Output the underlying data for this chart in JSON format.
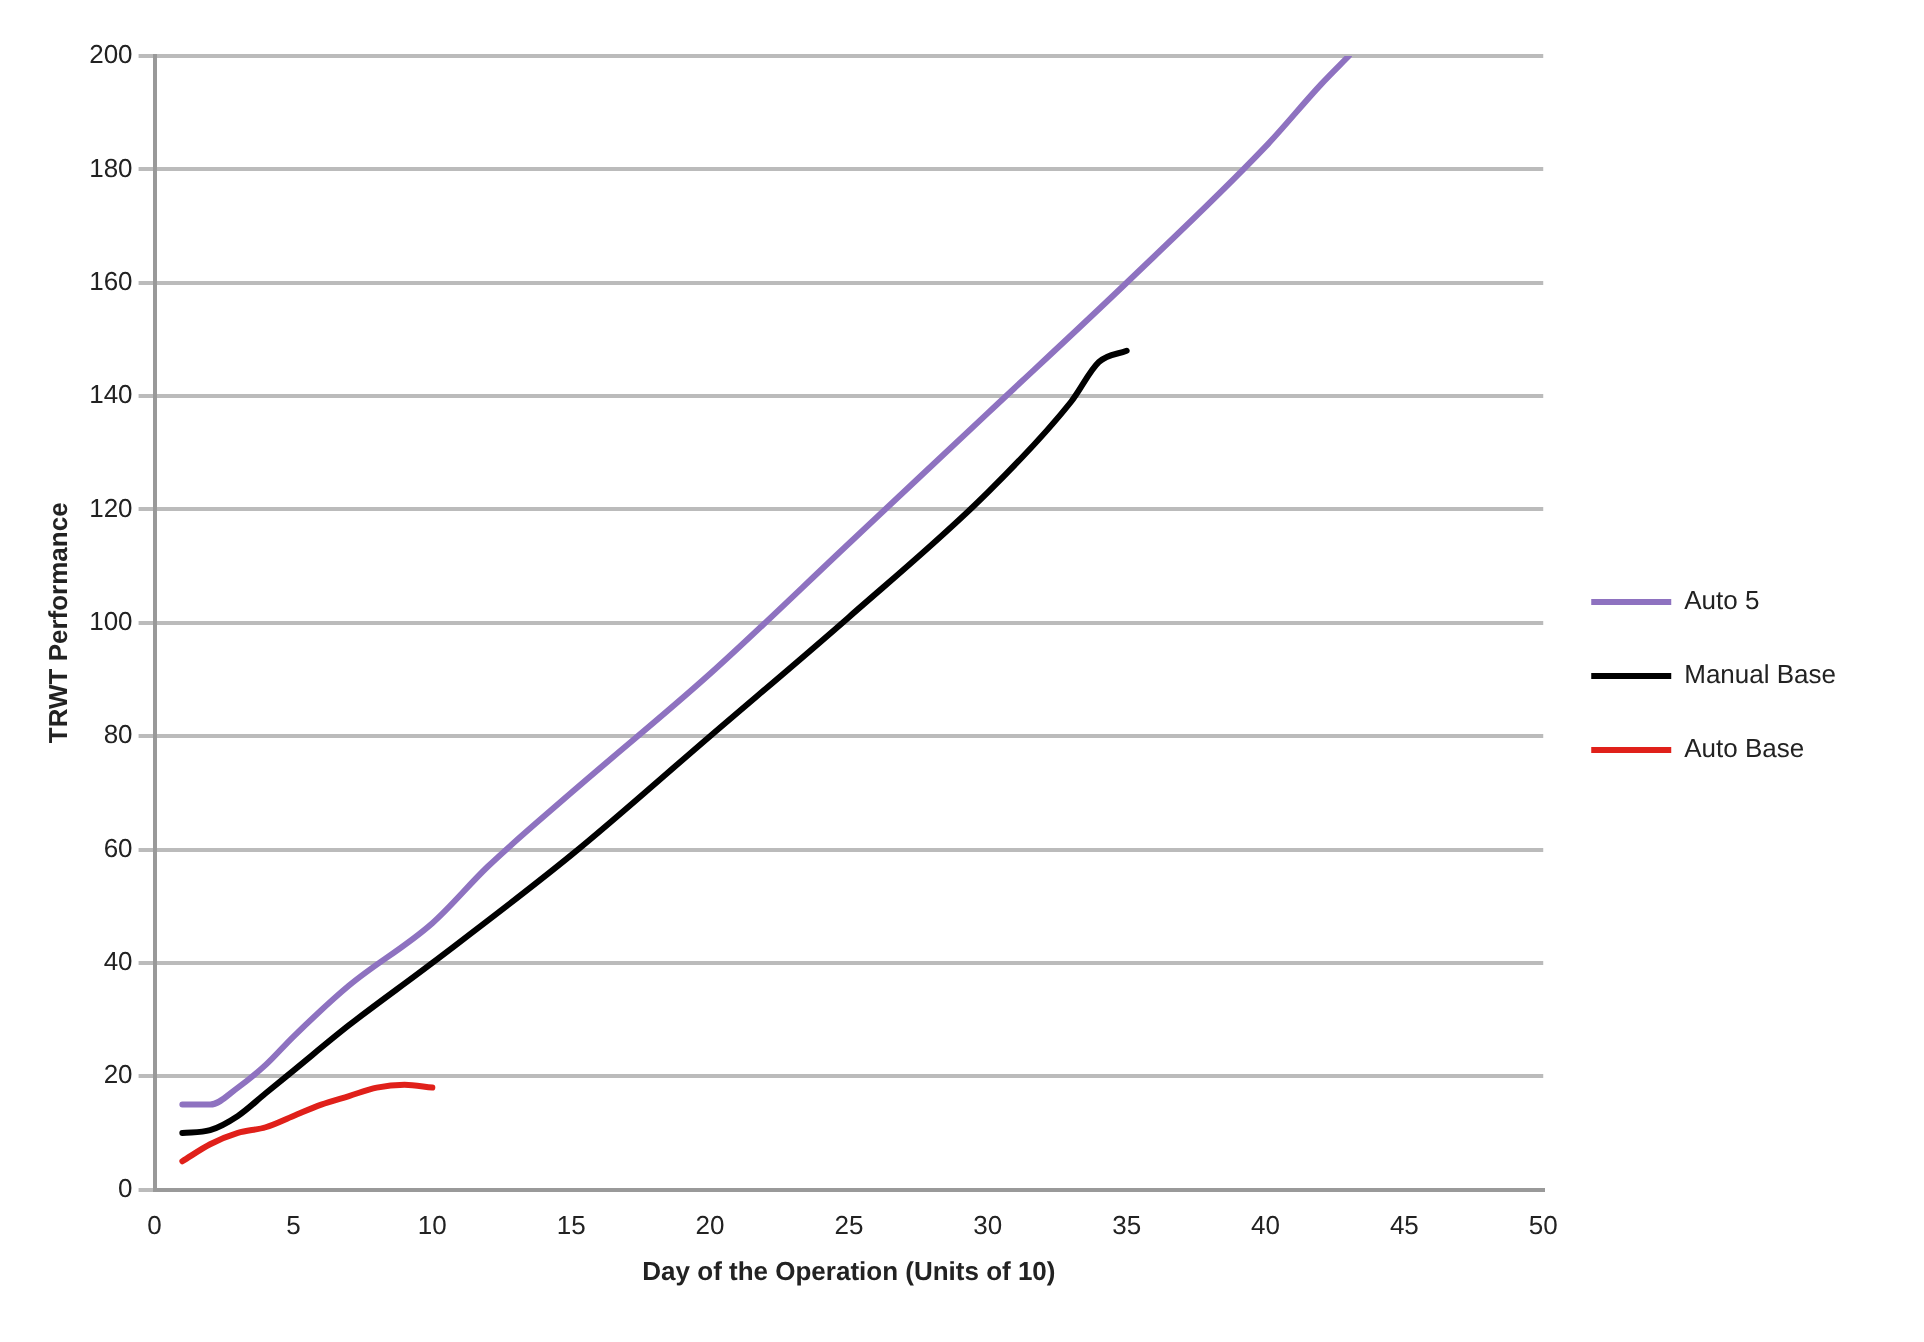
{
  "chart_data": {
    "type": "line",
    "xlabel": "Day of the Operation (Units of 10)",
    "ylabel": "TRWT Performance",
    "xlim": [
      0,
      50
    ],
    "xticks": [
      0,
      5,
      10,
      15,
      20,
      25,
      30,
      35,
      40,
      45,
      50
    ],
    "ylim": [
      0,
      200
    ],
    "yticks": [
      0,
      20,
      40,
      60,
      80,
      100,
      120,
      140,
      160,
      180,
      200
    ],
    "grid": "y",
    "legend": "right",
    "marker": "none",
    "line_style": "solid",
    "series": [
      {
        "name": "Auto 5",
        "color": "#8e72c0",
        "x": [
          1,
          2,
          3,
          4,
          5,
          7,
          10,
          12,
          15,
          20,
          25,
          30,
          35,
          40,
          42,
          43
        ],
        "values": [
          15,
          15,
          18,
          22,
          27,
          36,
          47,
          57,
          70,
          91,
          114,
          137,
          160,
          184,
          195,
          200
        ]
      },
      {
        "name": "Manual Base",
        "color": "#000000",
        "x": [
          1,
          2,
          3,
          4,
          5,
          7,
          10,
          15,
          20,
          25,
          30,
          33,
          34,
          35
        ],
        "values": [
          10,
          10.5,
          13,
          17,
          21,
          29,
          40,
          59,
          80,
          101,
          123,
          139,
          146,
          148
        ]
      },
      {
        "name": "Auto Base",
        "color": "#e0201a",
        "x": [
          1,
          2,
          3,
          4,
          5,
          6,
          7,
          8,
          9,
          10
        ],
        "values": [
          5,
          8,
          10,
          11,
          13,
          15,
          16.5,
          18,
          18.5,
          18
        ]
      }
    ]
  }
}
